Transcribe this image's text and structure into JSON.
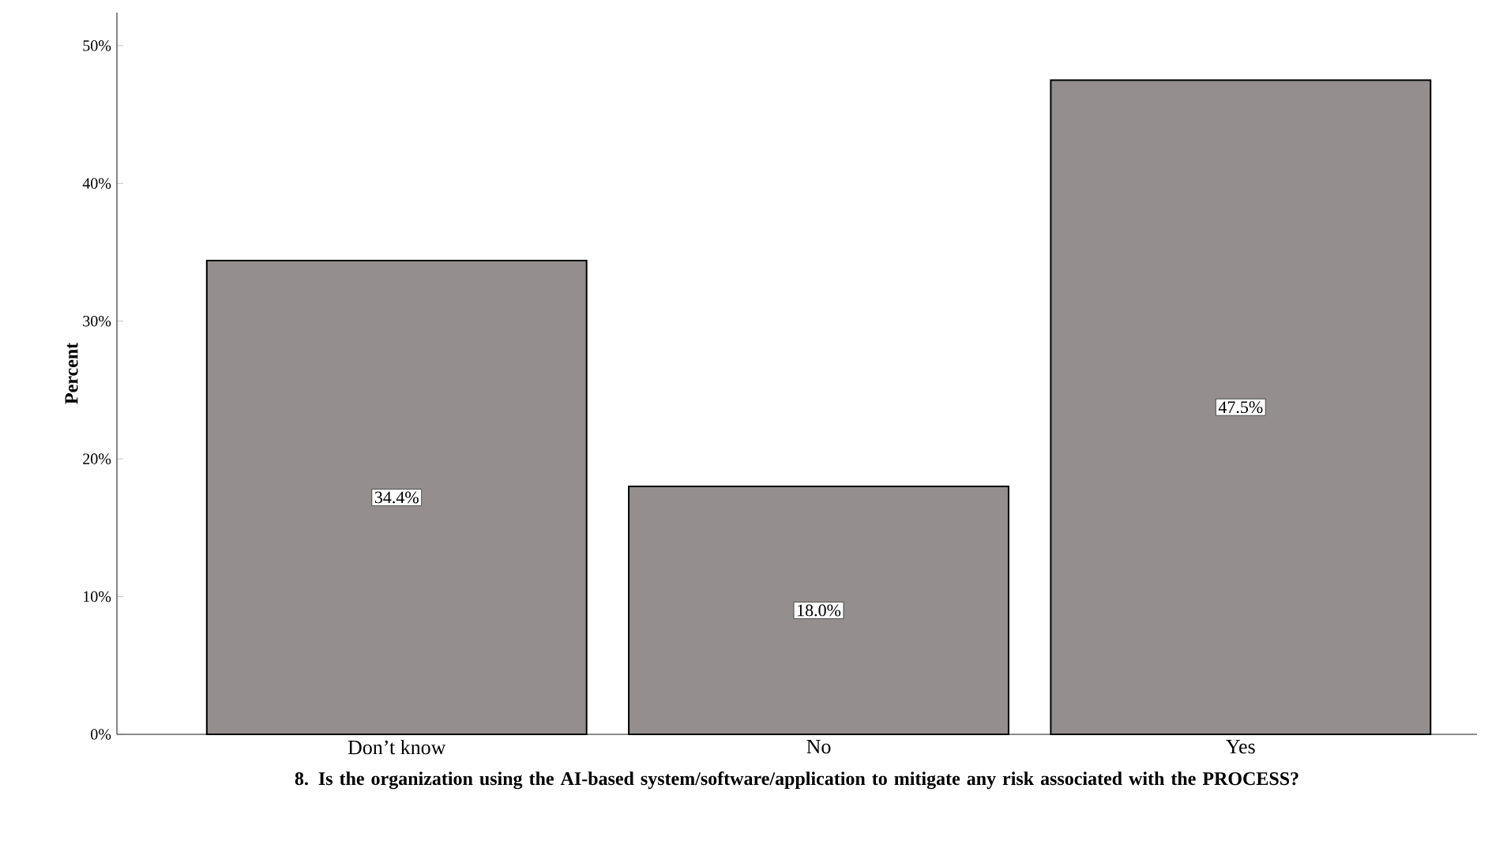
{
  "chart_data": {
    "type": "bar",
    "xlabel": "8. Is the organization using the AI-based system/software/application to mitigate any risk associated with the PROCESS?",
    "ylabel": "Percent",
    "categories": [
      "Don’t know",
      "No",
      "Yes"
    ],
    "values": [
      34.4,
      18.0,
      47.5
    ],
    "value_labels": [
      "34.4%",
      "18.0%",
      "47.5%"
    ],
    "color": "#948f8e",
    "ylim": [
      0,
      52.4
    ],
    "yticks": [
      {
        "value": 0,
        "label": "0%"
      },
      {
        "value": 10,
        "label": "10%"
      },
      {
        "value": 20,
        "label": "20%"
      },
      {
        "value": 30,
        "label": "30%"
      },
      {
        "value": 40,
        "label": "40%"
      },
      {
        "value": 50,
        "label": "50%"
      }
    ],
    "grid": false
  }
}
